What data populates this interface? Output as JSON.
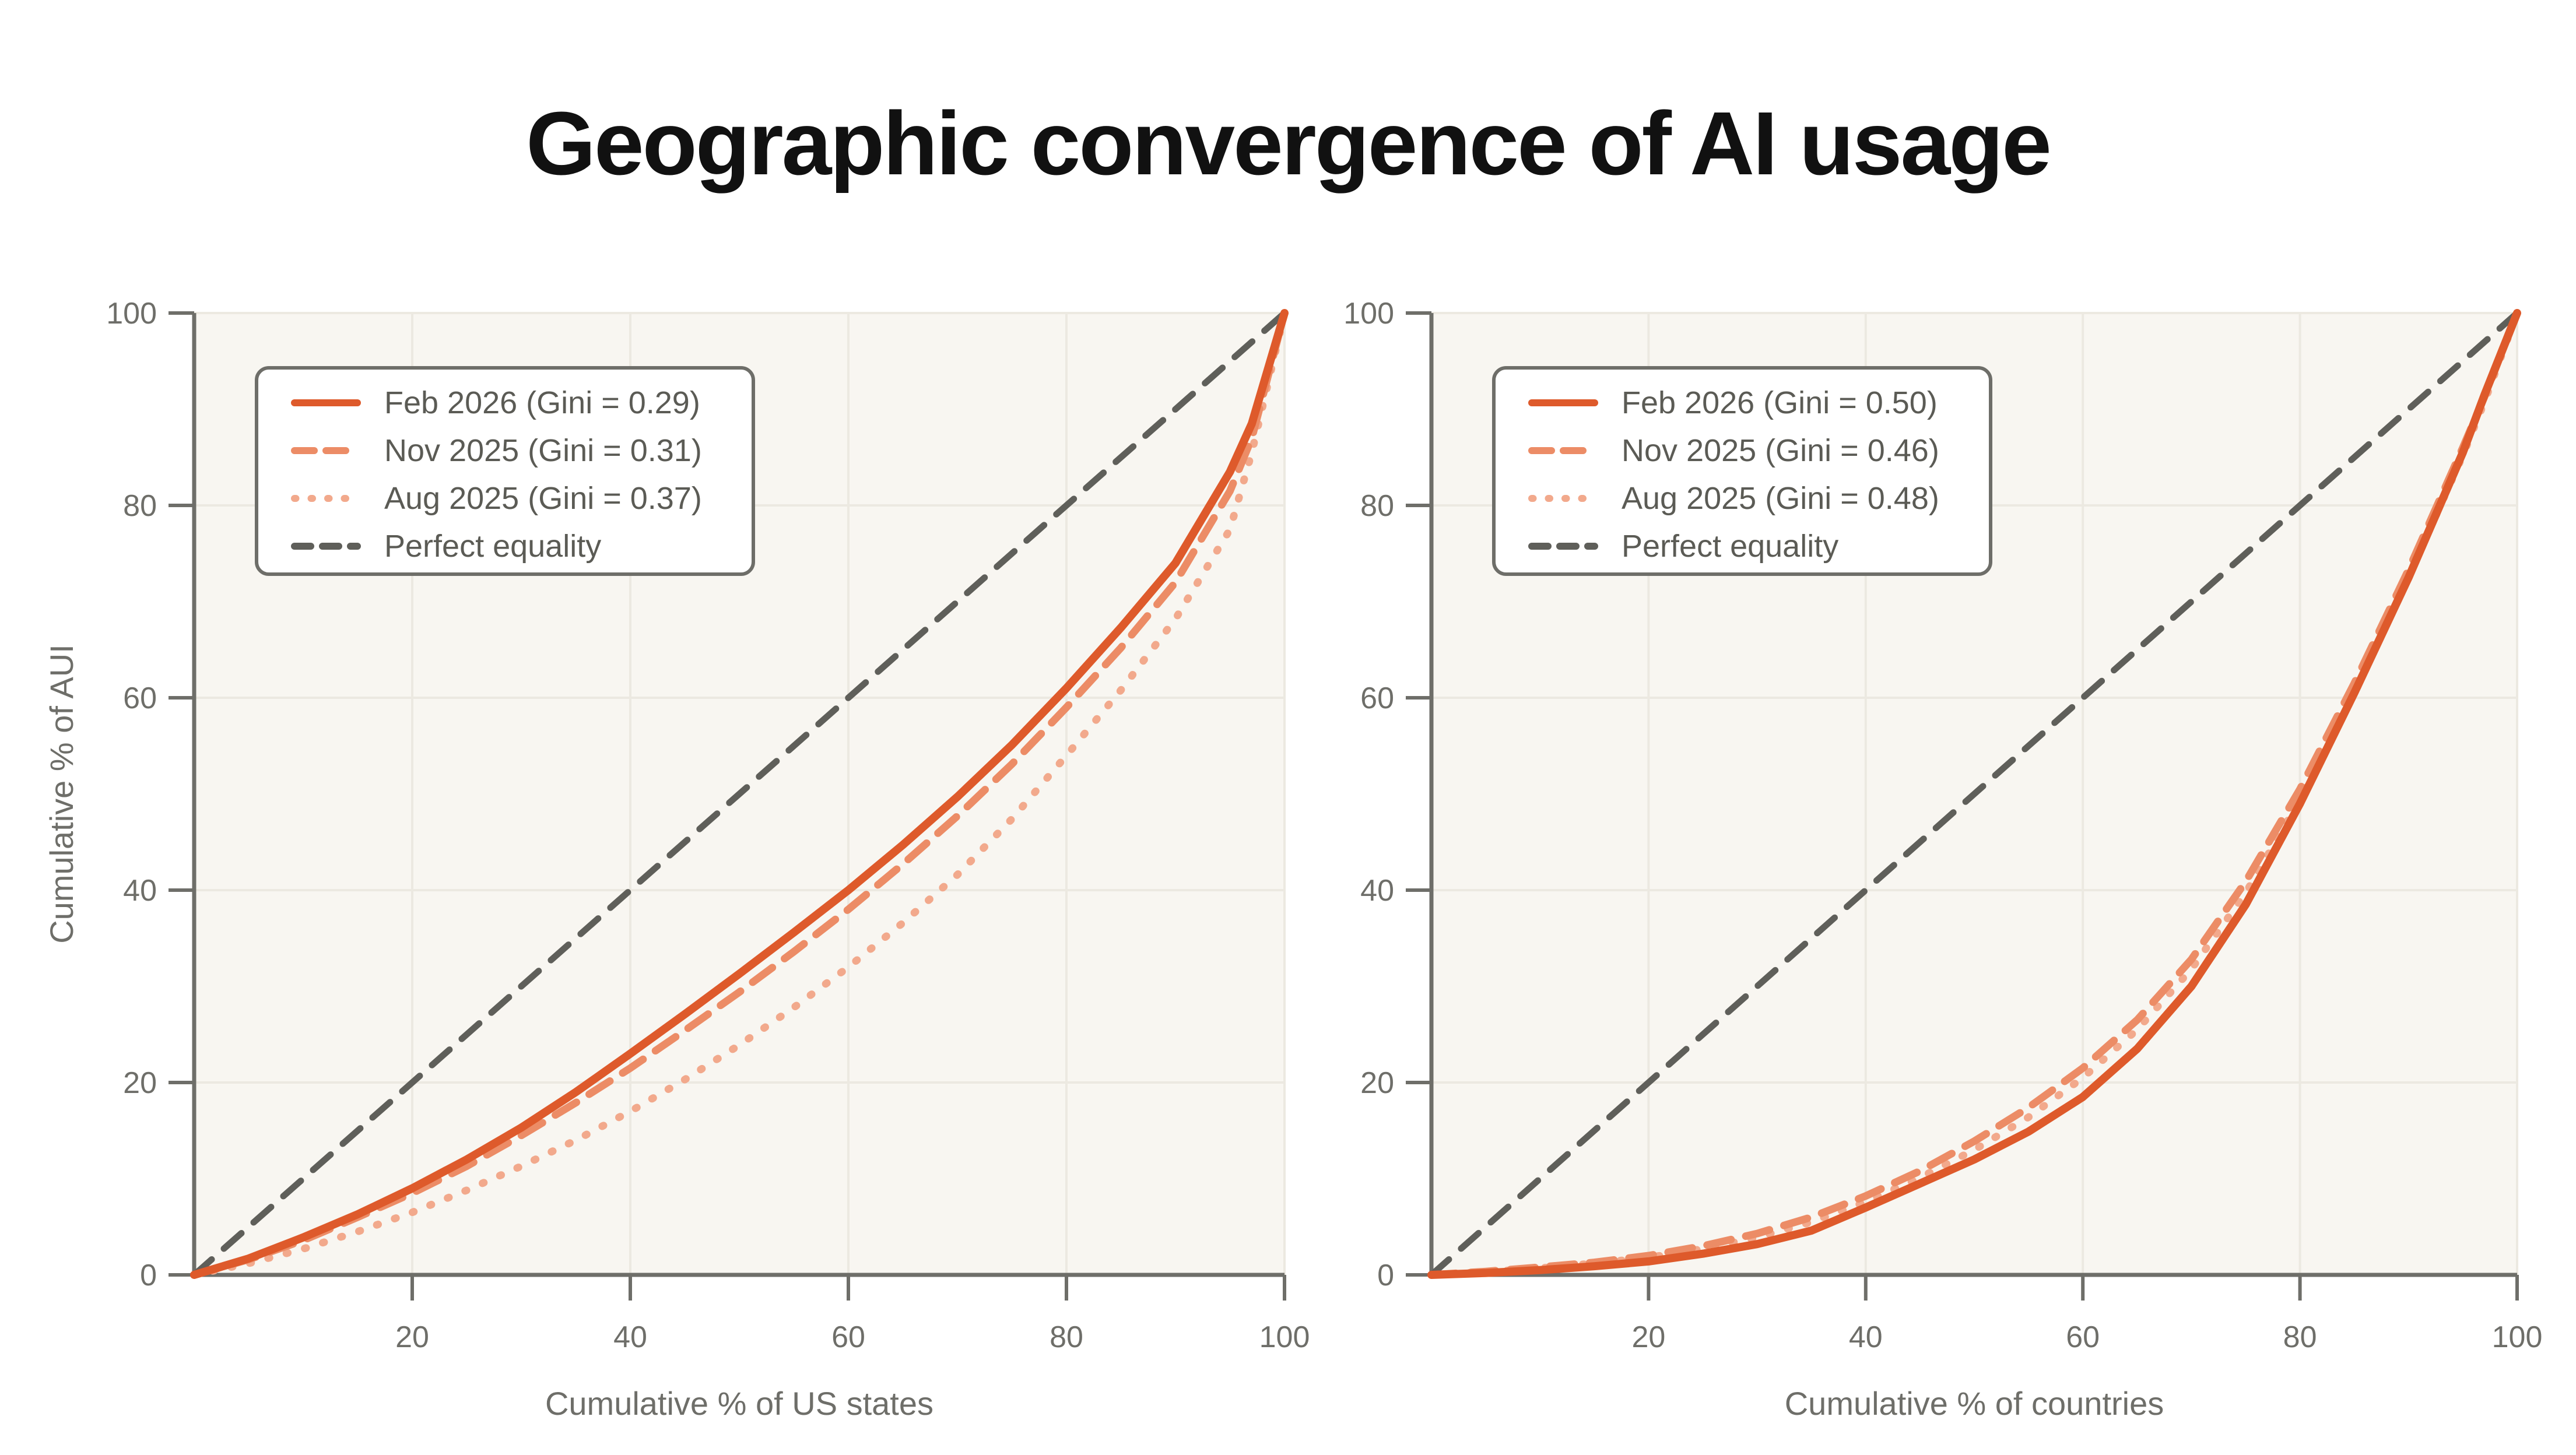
{
  "title": "Geographic convergence of AI usage",
  "colors": {
    "accent_solid": "#DE5A2B",
    "accent_dashed": "#EC8C66",
    "accent_dotted": "#F2A98C",
    "equality_gray": "#5F5F5A",
    "axis_gray": "#6E6E69",
    "grid": "#ECE9E1",
    "plot_bg": "#F8F6F1",
    "legend_text": "#5B5B55",
    "title_text": "#111111",
    "page_bg": "#FFFFFF"
  },
  "chart_data": [
    {
      "type": "line",
      "title": "",
      "xlabel": "Cumulative % of US states",
      "ylabel": "Cumulative % of AUI",
      "xlim": [
        0,
        100
      ],
      "ylim": [
        0,
        100
      ],
      "x_ticks": [
        20,
        40,
        60,
        80,
        100
      ],
      "y_ticks": [
        0,
        20,
        40,
        60,
        80,
        100
      ],
      "grid": true,
      "legend_position": "upper left",
      "series": [
        {
          "name": "feb-2026",
          "label": "Feb 2026 (Gini = 0.29)",
          "gini": 0.29,
          "style": "solid",
          "color": "#DE5A2B",
          "points": [
            [
              0,
              0
            ],
            [
              5,
              1.7
            ],
            [
              10,
              3.9
            ],
            [
              15,
              6.3
            ],
            [
              20,
              9
            ],
            [
              25,
              12
            ],
            [
              30,
              15.3
            ],
            [
              35,
              19
            ],
            [
              40,
              23
            ],
            [
              45,
              27.1
            ],
            [
              50,
              31.3
            ],
            [
              55,
              35.6
            ],
            [
              60,
              40
            ],
            [
              65,
              44.7
            ],
            [
              70,
              49.7
            ],
            [
              75,
              55.1
            ],
            [
              80,
              61
            ],
            [
              85,
              67.3
            ],
            [
              90,
              74
            ],
            [
              95,
              83.5
            ],
            [
              97,
              88.5
            ],
            [
              100,
              100
            ]
          ]
        },
        {
          "name": "nov-2025",
          "label": "Nov 2025 (Gini = 0.31)",
          "gini": 0.31,
          "style": "dashed",
          "color": "#EC8C66",
          "points": [
            [
              0,
              0
            ],
            [
              5,
              1.6
            ],
            [
              10,
              3.6
            ],
            [
              15,
              6
            ],
            [
              20,
              8.5
            ],
            [
              25,
              11.3
            ],
            [
              30,
              14.5
            ],
            [
              35,
              17.9
            ],
            [
              40,
              21.5
            ],
            [
              45,
              25.4
            ],
            [
              50,
              29.4
            ],
            [
              55,
              33.6
            ],
            [
              60,
              38
            ],
            [
              65,
              42.7
            ],
            [
              70,
              47.7
            ],
            [
              75,
              53.1
            ],
            [
              80,
              59
            ],
            [
              85,
              65.2
            ],
            [
              90,
              72
            ],
            [
              95,
              81.5
            ],
            [
              97,
              87
            ],
            [
              100,
              100
            ]
          ]
        },
        {
          "name": "aug-2025",
          "label": "Aug 2025 (Gini = 0.37)",
          "gini": 0.37,
          "style": "dotted",
          "color": "#F2A98C",
          "points": [
            [
              0,
              0
            ],
            [
              5,
              1.2
            ],
            [
              10,
              2.7
            ],
            [
              15,
              4.5
            ],
            [
              20,
              6.5
            ],
            [
              25,
              8.8
            ],
            [
              30,
              11.3
            ],
            [
              35,
              14
            ],
            [
              40,
              17
            ],
            [
              45,
              20.3
            ],
            [
              50,
              23.9
            ],
            [
              55,
              27.8
            ],
            [
              60,
              32
            ],
            [
              65,
              36.6
            ],
            [
              70,
              41.6
            ],
            [
              75,
              47.4
            ],
            [
              80,
              54
            ],
            [
              85,
              60.8
            ],
            [
              90,
              68.2
            ],
            [
              95,
              77.5
            ],
            [
              97,
              85.5
            ],
            [
              100,
              100
            ]
          ]
        },
        {
          "name": "perfect-equality",
          "label": "Perfect equality",
          "style": "equality-dashed",
          "color": "#5F5F5A",
          "points": [
            [
              0,
              0
            ],
            [
              100,
              100
            ]
          ]
        }
      ]
    },
    {
      "type": "line",
      "title": "",
      "xlabel": "Cumulative % of countries",
      "ylabel": "",
      "xlim": [
        0,
        100
      ],
      "ylim": [
        0,
        100
      ],
      "x_ticks": [
        20,
        40,
        60,
        80,
        100
      ],
      "y_ticks": [
        0,
        20,
        40,
        60,
        80,
        100
      ],
      "grid": true,
      "legend_position": "upper left",
      "series": [
        {
          "name": "feb-2026",
          "label": "Feb 2026 (Gini = 0.50)",
          "gini": 0.5,
          "style": "solid",
          "color": "#DE5A2B",
          "points": [
            [
              0,
              0
            ],
            [
              5,
              0.2
            ],
            [
              10,
              0.5
            ],
            [
              15,
              0.9
            ],
            [
              20,
              1.4
            ],
            [
              25,
              2.2
            ],
            [
              30,
              3.2
            ],
            [
              35,
              4.6
            ],
            [
              40,
              7
            ],
            [
              45,
              9.5
            ],
            [
              50,
              12
            ],
            [
              55,
              14.9
            ],
            [
              60,
              18.5
            ],
            [
              65,
              23.5
            ],
            [
              70,
              30
            ],
            [
              75,
              38.5
            ],
            [
              80,
              49
            ],
            [
              85,
              60.5
            ],
            [
              90,
              72.5
            ],
            [
              95,
              85.5
            ],
            [
              97,
              91.5
            ],
            [
              100,
              100
            ]
          ]
        },
        {
          "name": "nov-2025",
          "label": "Nov 2025 (Gini = 0.46)",
          "gini": 0.46,
          "style": "dashed",
          "color": "#EC8C66",
          "points": [
            [
              0,
              0
            ],
            [
              5,
              0.35
            ],
            [
              10,
              0.8
            ],
            [
              15,
              1.3
            ],
            [
              20,
              2
            ],
            [
              25,
              3
            ],
            [
              30,
              4.3
            ],
            [
              35,
              6
            ],
            [
              40,
              8.2
            ],
            [
              45,
              10.8
            ],
            [
              50,
              13.9
            ],
            [
              55,
              17.4
            ],
            [
              60,
              21.5
            ],
            [
              65,
              26.5
            ],
            [
              70,
              32.8
            ],
            [
              75,
              40.9
            ],
            [
              80,
              50.5
            ],
            [
              85,
              61.5
            ],
            [
              90,
              73.3
            ],
            [
              95,
              86
            ],
            [
              97,
              91.3
            ],
            [
              100,
              100
            ]
          ]
        },
        {
          "name": "aug-2025",
          "label": "Aug 2025 (Gini = 0.48)",
          "gini": 0.48,
          "style": "dotted",
          "color": "#F2A98C",
          "points": [
            [
              0,
              0
            ],
            [
              5,
              0.3
            ],
            [
              10,
              0.7
            ],
            [
              15,
              1.2
            ],
            [
              20,
              1.8
            ],
            [
              25,
              2.7
            ],
            [
              30,
              3.9
            ],
            [
              35,
              5.5
            ],
            [
              40,
              7.6
            ],
            [
              45,
              10.1
            ],
            [
              50,
              13
            ],
            [
              55,
              16.4
            ],
            [
              60,
              20.5
            ],
            [
              65,
              25.5
            ],
            [
              70,
              31.8
            ],
            [
              75,
              39.7
            ],
            [
              80,
              49.4
            ],
            [
              85,
              60.4
            ],
            [
              90,
              72.6
            ],
            [
              95,
              85.2
            ],
            [
              97,
              90.8
            ],
            [
              100,
              100
            ]
          ]
        },
        {
          "name": "perfect-equality",
          "label": "Perfect equality",
          "style": "equality-dashed",
          "color": "#5F5F5A",
          "points": [
            [
              0,
              0
            ],
            [
              100,
              100
            ]
          ]
        }
      ]
    }
  ]
}
